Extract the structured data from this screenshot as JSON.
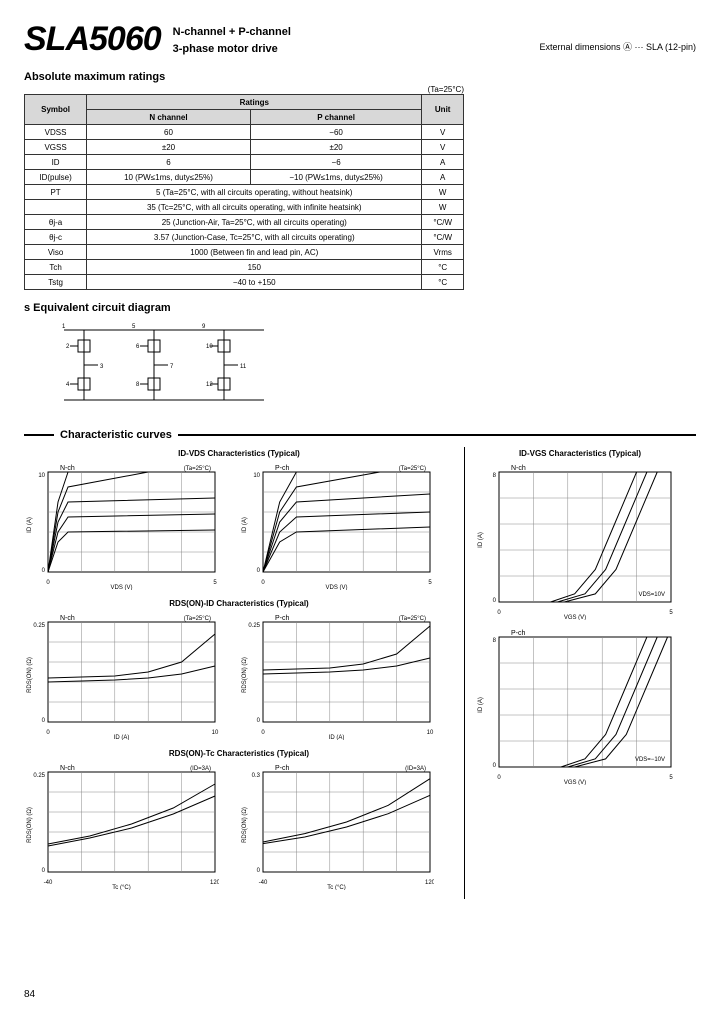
{
  "header": {
    "part_number": "SLA5060",
    "desc_line1": "N-channel + P-channel",
    "desc_line2": "3-phase motor drive",
    "ext_dim": "External dimensions Ⓐ ··· SLA (12-pin)"
  },
  "ratings": {
    "title": "Absolute maximum ratings",
    "condition": "(Ta=25°C)",
    "columns": {
      "symbol": "Symbol",
      "ratings": "Ratings",
      "nch": "N channel",
      "pch": "P channel",
      "unit": "Unit"
    },
    "rows": [
      {
        "sym": "VDSS",
        "n": "60",
        "p": "−60",
        "unit": "V"
      },
      {
        "sym": "VGSS",
        "n": "±20",
        "p": "±20",
        "unit": "V"
      },
      {
        "sym": "ID",
        "n": "6",
        "p": "−6",
        "unit": "A"
      },
      {
        "sym": "ID(pulse)",
        "n": "10 (PW≤1ms, duty≤25%)",
        "p": "−10 (PW≤1ms, duty≤25%)",
        "unit": "A"
      },
      {
        "sym": "PT",
        "span": "5 (Ta=25°C, with all circuits operating, without heatsink)",
        "unit": "W"
      },
      {
        "sym": "",
        "span": "35 (Tc=25°C, with all circuits operating, with infinite heatsink)",
        "unit": "W"
      },
      {
        "sym": "θj-a",
        "span": "25 (Junction-Air, Ta=25°C, with all circuits operating)",
        "unit": "°C/W"
      },
      {
        "sym": "θj-c",
        "span": "3.57 (Junction-Case, Tc=25°C, with all circuits operating)",
        "unit": "°C/W"
      },
      {
        "sym": "Viso",
        "span": "1000 (Between fin and lead pin, AC)",
        "unit": "Vrms"
      },
      {
        "sym": "Tch",
        "span": "150",
        "unit": "°C"
      },
      {
        "sym": "Tstg",
        "span": "−40 to +150",
        "unit": "°C"
      }
    ]
  },
  "circuit": {
    "title": "s Equivalent circuit diagram",
    "pins": [
      "1",
      "2",
      "3",
      "4",
      "5",
      "6",
      "7",
      "8",
      "9",
      "10",
      "11",
      "12"
    ]
  },
  "curves": {
    "title": "Characteristic curves",
    "charts_left": [
      {
        "title": "ID-VDS Characteristics (Typical)",
        "pair": [
          {
            "sub": "N-ch",
            "xlabel": "VDS (V)",
            "ylabel": "ID (A)",
            "xlim": [
              0,
              5
            ],
            "ylim": [
              0,
              10
            ],
            "cond": "(Ta=25°C)"
          },
          {
            "sub": "P-ch",
            "xlabel": "VDS (V)",
            "ylabel": "ID (A)",
            "xlim": [
              0,
              5
            ],
            "ylim": [
              0,
              10
            ],
            "cond": "(Ta=25°C)"
          }
        ],
        "colors": {
          "grid": "#888",
          "line": "#000",
          "bg": "#fff"
        },
        "type": "line",
        "series_n": [
          [
            [
              0,
              0
            ],
            [
              0.3,
              3
            ],
            [
              0.6,
              4
            ],
            [
              5,
              4.2
            ]
          ],
          [
            [
              0,
              0
            ],
            [
              0.3,
              4
            ],
            [
              0.6,
              5.5
            ],
            [
              5,
              5.8
            ]
          ],
          [
            [
              0,
              0
            ],
            [
              0.3,
              5
            ],
            [
              0.6,
              7
            ],
            [
              5,
              7.4
            ]
          ],
          [
            [
              0,
              0
            ],
            [
              0.3,
              6
            ],
            [
              0.6,
              8.5
            ],
            [
              3,
              10
            ]
          ],
          [
            [
              0,
              0
            ],
            [
              0.3,
              7
            ],
            [
              0.6,
              10
            ]
          ]
        ],
        "series_p": [
          [
            [
              0,
              0
            ],
            [
              0.5,
              3
            ],
            [
              1,
              4
            ],
            [
              5,
              4.5
            ]
          ],
          [
            [
              0,
              0
            ],
            [
              0.5,
              4
            ],
            [
              1,
              5.5
            ],
            [
              5,
              6
            ]
          ],
          [
            [
              0,
              0
            ],
            [
              0.5,
              5
            ],
            [
              1,
              7
            ],
            [
              5,
              7.8
            ]
          ],
          [
            [
              0,
              0
            ],
            [
              0.5,
              6
            ],
            [
              1,
              8.5
            ],
            [
              3.5,
              10
            ]
          ],
          [
            [
              0,
              0
            ],
            [
              0.5,
              7
            ],
            [
              1,
              10
            ]
          ]
        ]
      },
      {
        "title": "RDS(ON)-ID Characteristics (Typical)",
        "pair": [
          {
            "sub": "N-ch",
            "xlabel": "ID (A)",
            "ylabel": "RDS(ON) (Ω)",
            "xlim": [
              0,
              10
            ],
            "ylim": [
              0,
              0.25
            ],
            "cond": "(Ta=25°C)"
          },
          {
            "sub": "P-ch",
            "xlabel": "ID (A)",
            "ylabel": "RDS(ON) (Ω)",
            "xlim": [
              0,
              10
            ],
            "ylim": [
              0,
              0.25
            ],
            "cond": "(Ta=25°C)"
          }
        ],
        "colors": {
          "grid": "#888",
          "line": "#000",
          "bg": "#fff"
        },
        "type": "line",
        "series_n": [
          [
            [
              0,
              0.11
            ],
            [
              4,
              0.115
            ],
            [
              6,
              0.125
            ],
            [
              8,
              0.15
            ],
            [
              10,
              0.22
            ]
          ],
          [
            [
              0,
              0.1
            ],
            [
              4,
              0.105
            ],
            [
              6,
              0.11
            ],
            [
              8,
              0.12
            ],
            [
              10,
              0.14
            ]
          ]
        ],
        "series_p": [
          [
            [
              0,
              0.13
            ],
            [
              4,
              0.135
            ],
            [
              6,
              0.145
            ],
            [
              8,
              0.17
            ],
            [
              10,
              0.24
            ]
          ],
          [
            [
              0,
              0.12
            ],
            [
              4,
              0.125
            ],
            [
              6,
              0.13
            ],
            [
              8,
              0.14
            ],
            [
              10,
              0.16
            ]
          ]
        ]
      },
      {
        "title": "RDS(ON)-Tc Characteristics (Typical)",
        "pair": [
          {
            "sub": "N-ch",
            "xlabel": "Tc (°C)",
            "ylabel": "RDS(ON) (Ω)",
            "xlim": [
              -40,
              120
            ],
            "ylim": [
              0,
              0.25
            ],
            "cond": "(ID=3A)"
          },
          {
            "sub": "P-ch",
            "xlabel": "Tc (°C)",
            "ylabel": "RDS(ON) (Ω)",
            "xlim": [
              -40,
              120
            ],
            "ylim": [
              0,
              0.3
            ],
            "cond": "(ID=3A)"
          }
        ],
        "colors": {
          "grid": "#888",
          "line": "#000",
          "bg": "#fff"
        },
        "type": "line",
        "series_n": [
          [
            [
              -40,
              0.07
            ],
            [
              0,
              0.09
            ],
            [
              40,
              0.12
            ],
            [
              80,
              0.16
            ],
            [
              120,
              0.22
            ]
          ],
          [
            [
              -40,
              0.065
            ],
            [
              0,
              0.085
            ],
            [
              40,
              0.11
            ],
            [
              80,
              0.145
            ],
            [
              120,
              0.19
            ]
          ]
        ],
        "series_p": [
          [
            [
              -40,
              0.09
            ],
            [
              0,
              0.115
            ],
            [
              40,
              0.15
            ],
            [
              80,
              0.2
            ],
            [
              120,
              0.28
            ]
          ],
          [
            [
              -40,
              0.085
            ],
            [
              0,
              0.105
            ],
            [
              40,
              0.135
            ],
            [
              80,
              0.175
            ],
            [
              120,
              0.23
            ]
          ]
        ]
      }
    ],
    "charts_right": [
      {
        "title": "ID-VGS Characteristics (Typical)",
        "sub": "N-ch",
        "xlabel": "VGS (V)",
        "ylabel": "ID (A)",
        "xlim": [
          0,
          5
        ],
        "ylim": [
          0,
          8
        ],
        "colors": {
          "grid": "#888",
          "line": "#000",
          "bg": "#fff"
        },
        "type": "line",
        "series": [
          [
            [
              1.5,
              0
            ],
            [
              2.2,
              0.5
            ],
            [
              2.8,
              2
            ],
            [
              3.4,
              5
            ],
            [
              4,
              8
            ]
          ],
          [
            [
              1.7,
              0
            ],
            [
              2.5,
              0.5
            ],
            [
              3.1,
              2
            ],
            [
              3.7,
              5
            ],
            [
              4.3,
              8
            ]
          ],
          [
            [
              1.9,
              0
            ],
            [
              2.8,
              0.5
            ],
            [
              3.4,
              2
            ],
            [
              4.0,
              5
            ],
            [
              4.6,
              8
            ]
          ]
        ],
        "annot": "VDS=10V"
      },
      {
        "title": "",
        "sub": "P-ch",
        "xlabel": "VGS (V)",
        "ylabel": "ID (A)",
        "xlim": [
          0,
          5
        ],
        "ylim": [
          0,
          8
        ],
        "colors": {
          "grid": "#888",
          "line": "#000",
          "bg": "#fff"
        },
        "type": "line",
        "series": [
          [
            [
              1.8,
              0
            ],
            [
              2.5,
              0.5
            ],
            [
              3.1,
              2
            ],
            [
              3.7,
              5
            ],
            [
              4.3,
              8
            ]
          ],
          [
            [
              2.0,
              0
            ],
            [
              2.8,
              0.5
            ],
            [
              3.4,
              2
            ],
            [
              4.0,
              5
            ],
            [
              4.6,
              8
            ]
          ],
          [
            [
              2.2,
              0
            ],
            [
              3.1,
              0.5
            ],
            [
              3.7,
              2
            ],
            [
              4.3,
              5
            ],
            [
              4.9,
              8
            ]
          ]
        ],
        "annot": "VDS=−10V"
      }
    ]
  },
  "pagenum": "84"
}
